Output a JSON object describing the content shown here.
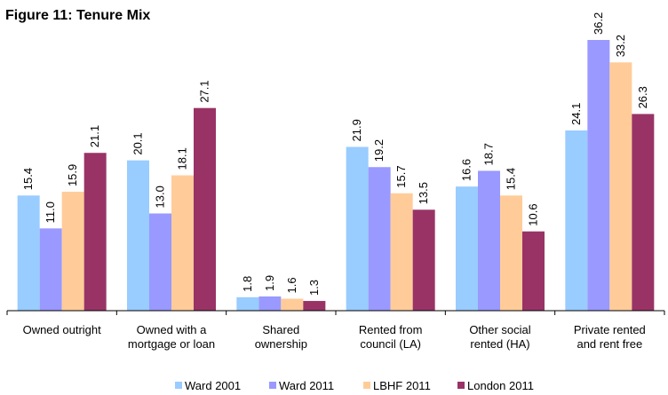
{
  "chart_data": {
    "type": "bar",
    "title": "Figure 11: Tenure Mix",
    "categories": [
      "Owned outright",
      "Owned with a\nmortgage or loan",
      "Shared\nownership",
      "Rented from\ncouncil (LA)",
      "Other social\nrented (HA)",
      "Private rented\nand rent free"
    ],
    "series": [
      {
        "name": "Ward 2001",
        "color": "#99ccff",
        "values": [
          15.4,
          20.1,
          1.8,
          21.9,
          16.6,
          24.1
        ],
        "value_labels": [
          "15.4",
          "20.1",
          "1.8",
          "21.9",
          "16.6",
          "24.1"
        ]
      },
      {
        "name": "Ward 2011",
        "color": "#9999ff",
        "values": [
          11.0,
          13.0,
          1.9,
          19.2,
          18.7,
          36.2
        ],
        "value_labels": [
          "11.0",
          "13.0",
          "1.9",
          "19.2",
          "18.7",
          "36.2"
        ]
      },
      {
        "name": "LBHF 2011",
        "color": "#ffcc99",
        "values": [
          15.9,
          18.1,
          1.6,
          15.7,
          15.4,
          33.2
        ],
        "value_labels": [
          "15.9",
          "18.1",
          "1.6",
          "15.7",
          "15.4",
          "33.2"
        ]
      },
      {
        "name": "London 2011",
        "color": "#993366",
        "values": [
          21.1,
          27.1,
          1.3,
          13.5,
          10.6,
          26.3
        ],
        "value_labels": [
          "21.1",
          "27.1",
          "1.3",
          "13.5",
          "10.6",
          "26.3"
        ]
      }
    ],
    "ylim": [
      0,
      40
    ],
    "legend": "bottom"
  }
}
